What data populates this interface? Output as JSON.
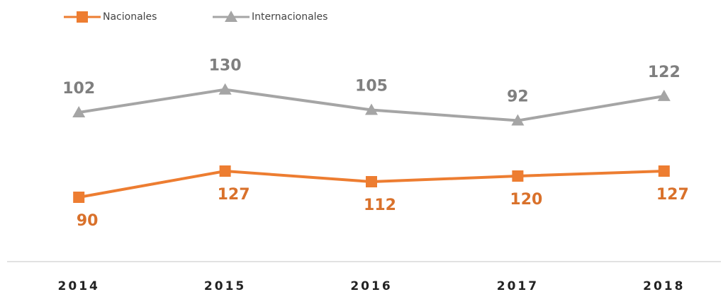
{
  "chart_data": {
    "type": "line",
    "categories": [
      "2014",
      "2015",
      "2016",
      "2017",
      "2018"
    ],
    "series": [
      {
        "name": "Nacionales",
        "color": "#ed7d31",
        "label_color": "#d9712b",
        "marker": "square",
        "values": [
          90,
          127,
          112,
          120,
          127
        ]
      },
      {
        "name": "Internacionales",
        "color": "#a5a5a5",
        "label_color": "#7f7f7f",
        "marker": "triangle",
        "axis": "y2",
        "values": [
          102,
          130,
          105,
          92,
          122
        ]
      }
    ],
    "ylim": [
      0,
      300
    ],
    "y2lim": [
      -80,
      180
    ],
    "legend": "top-left"
  }
}
